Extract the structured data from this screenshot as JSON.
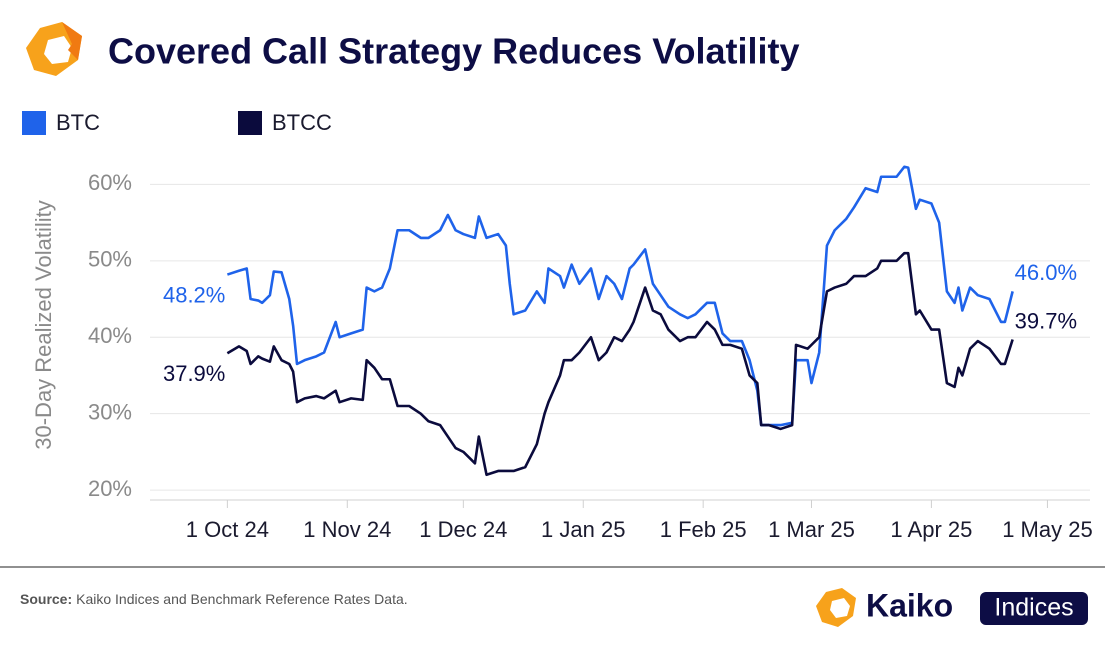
{
  "chart_data": {
    "type": "line",
    "title": "Covered Call Strategy Reduces Volatility",
    "y_label": "30-Day Realized Volatility",
    "x": [
      "2024-10-01",
      "2024-10-04",
      "2024-10-06",
      "2024-10-07",
      "2024-10-09",
      "2024-10-10",
      "2024-10-12",
      "2024-10-13",
      "2024-10-15",
      "2024-10-17",
      "2024-10-18",
      "2024-10-19",
      "2024-10-21",
      "2024-10-24",
      "2024-10-26",
      "2024-10-29",
      "2024-10-30",
      "2024-11-02",
      "2024-11-05",
      "2024-11-06",
      "2024-11-08",
      "2024-11-10",
      "2024-11-12",
      "2024-11-14",
      "2024-11-17",
      "2024-11-20",
      "2024-11-22",
      "2024-11-25",
      "2024-11-27",
      "2024-11-29",
      "2024-12-01",
      "2024-12-04",
      "2024-12-05",
      "2024-12-07",
      "2024-12-10",
      "2024-12-12",
      "2024-12-13",
      "2024-12-14",
      "2024-12-17",
      "2024-12-20",
      "2024-12-22",
      "2024-12-23",
      "2024-12-26",
      "2024-12-27",
      "2024-12-29",
      "2024-12-31",
      "2025-01-03",
      "2025-01-05",
      "2025-01-07",
      "2025-01-09",
      "2025-01-11",
      "2025-01-13",
      "2025-01-14",
      "2025-01-17",
      "2025-01-19",
      "2025-01-21",
      "2025-01-23",
      "2025-01-26",
      "2025-01-28",
      "2025-01-30",
      "2025-02-02",
      "2025-02-04",
      "2025-02-06",
      "2025-02-08",
      "2025-02-11",
      "2025-02-13",
      "2025-02-15",
      "2025-02-16",
      "2025-02-18",
      "2025-02-21",
      "2025-02-24",
      "2025-02-25",
      "2025-02-28",
      "2025-03-01",
      "2025-03-03",
      "2025-03-05",
      "2025-03-07",
      "2025-03-10",
      "2025-03-12",
      "2025-03-15",
      "2025-03-18",
      "2025-03-19",
      "2025-03-23",
      "2025-03-25",
      "2025-03-26",
      "2025-03-28",
      "2025-03-29",
      "2025-04-01",
      "2025-04-03",
      "2025-04-05",
      "2025-04-07",
      "2025-04-08",
      "2025-04-09",
      "2025-04-11",
      "2025-04-13",
      "2025-04-16",
      "2025-04-19",
      "2025-04-20",
      "2025-04-22"
    ],
    "series": [
      {
        "name": "BTC",
        "color": "#1f63ea",
        "values": [
          48.2,
          48.7,
          49.0,
          45.0,
          44.8,
          44.5,
          45.5,
          48.6,
          48.5,
          45.0,
          41.5,
          36.5,
          37.0,
          37.5,
          38.0,
          42.0,
          40.0,
          40.5,
          41.0,
          46.5,
          46.0,
          46.5,
          49.0,
          54.0,
          54.0,
          53.0,
          53.0,
          54.0,
          56.0,
          54.0,
          53.5,
          53.0,
          55.8,
          53.0,
          53.5,
          52.0,
          47.0,
          43.0,
          43.5,
          46.0,
          44.5,
          49.0,
          48.0,
          46.5,
          49.5,
          47.0,
          49.0,
          45.0,
          48.0,
          47.0,
          45.0,
          49.0,
          49.5,
          51.5,
          47.0,
          45.5,
          44.0,
          43.0,
          42.5,
          43.0,
          44.5,
          44.5,
          40.5,
          39.5,
          39.5,
          37.0,
          33.0,
          28.5,
          28.5,
          28.5,
          28.8,
          37.0,
          37.0,
          34.0,
          38.0,
          52.0,
          54.0,
          55.5,
          57.0,
          59.5,
          59.0,
          61.0,
          61.0,
          62.3,
          62.2,
          56.8,
          58.0,
          57.5,
          55.0,
          46.0,
          44.5,
          46.5,
          43.5,
          46.5,
          45.5,
          45.0,
          42.0,
          42.0,
          46.0
        ],
        "value_labels": [
          "48.2%",
          null,
          null,
          null,
          null,
          null,
          null,
          null,
          null,
          null,
          null,
          null,
          null,
          null,
          null,
          null,
          null,
          null,
          null,
          null,
          null,
          null,
          null,
          null,
          null,
          null,
          null,
          null,
          null,
          null,
          null,
          null,
          null,
          null,
          null,
          null,
          null,
          null,
          null,
          null,
          null,
          null,
          null,
          null,
          null,
          null,
          null,
          null,
          null,
          null,
          null,
          null,
          null,
          null,
          null,
          null,
          null,
          null,
          null,
          null,
          null,
          null,
          null,
          null,
          null,
          null,
          null,
          null,
          null,
          null,
          null,
          null,
          null,
          null,
          null,
          null,
          null,
          null,
          null,
          null,
          null,
          null,
          null,
          null,
          null,
          null,
          null,
          null,
          null,
          null,
          null,
          null,
          null,
          null,
          null,
          null,
          null,
          null,
          "46.0%"
        ]
      },
      {
        "name": "BTCC",
        "color": "#0b0b3d",
        "values": [
          37.9,
          38.8,
          38.2,
          36.5,
          37.5,
          37.2,
          36.8,
          38.8,
          37.0,
          36.5,
          35.5,
          31.5,
          32.0,
          32.3,
          32.0,
          33.0,
          31.5,
          32.0,
          31.8,
          37.0,
          36.0,
          34.5,
          34.5,
          31.0,
          31.0,
          30.0,
          29.0,
          28.5,
          27.0,
          25.5,
          25.0,
          23.5,
          27.0,
          22.0,
          22.5,
          22.5,
          22.5,
          22.5,
          23.0,
          26.0,
          30.0,
          31.5,
          35.0,
          37.0,
          37.0,
          38.0,
          40.0,
          37.0,
          38.0,
          40.0,
          39.5,
          41.0,
          42.0,
          46.5,
          43.5,
          43.0,
          41.0,
          39.5,
          40.0,
          40.0,
          42.0,
          41.0,
          39.0,
          39.0,
          38.5,
          35.0,
          34.0,
          28.5,
          28.5,
          28.0,
          28.5,
          39.0,
          38.5,
          39.0,
          40.0,
          46.0,
          46.5,
          47.0,
          48.0,
          48.0,
          49.0,
          50.0,
          50.0,
          51.0,
          51.0,
          43.0,
          43.5,
          41.0,
          41.0,
          34.0,
          33.5,
          36.0,
          35.0,
          38.5,
          39.5,
          38.5,
          36.5,
          36.5,
          39.7
        ],
        "value_labels": [
          "37.9%",
          null,
          null,
          null,
          null,
          null,
          null,
          null,
          null,
          null,
          null,
          null,
          null,
          null,
          null,
          null,
          null,
          null,
          null,
          null,
          null,
          null,
          null,
          null,
          null,
          null,
          null,
          null,
          null,
          null,
          null,
          null,
          null,
          null,
          null,
          null,
          null,
          null,
          null,
          null,
          null,
          null,
          null,
          null,
          null,
          null,
          null,
          null,
          null,
          null,
          null,
          null,
          null,
          null,
          null,
          null,
          null,
          null,
          null,
          null,
          null,
          null,
          null,
          null,
          null,
          null,
          null,
          null,
          null,
          null,
          null,
          null,
          null,
          null,
          null,
          null,
          null,
          null,
          null,
          null,
          null,
          null,
          null,
          null,
          null,
          null,
          null,
          null,
          null,
          null,
          null,
          null,
          null,
          null,
          null,
          null,
          null,
          null,
          "39.7%"
        ]
      }
    ],
    "xlim": [
      "2024-09-11",
      "2025-05-12"
    ],
    "xticks": [
      {
        "value": "2024-10-01",
        "label": "1 Oct 24"
      },
      {
        "value": "2024-11-01",
        "label": "1 Nov 24"
      },
      {
        "value": "2024-12-01",
        "label": "1 Dec 24"
      },
      {
        "value": "2025-01-01",
        "label": "1 Jan 25"
      },
      {
        "value": "2025-02-01",
        "label": "1 Feb 25"
      },
      {
        "value": "2025-03-01",
        "label": "1 Mar 25"
      },
      {
        "value": "2025-04-01",
        "label": "1 Apr 25"
      },
      {
        "value": "2025-05-01",
        "label": "1 May 25"
      }
    ],
    "ylim": [
      18.7,
      62.8
    ],
    "yticks": [
      {
        "value": 20,
        "label": "20%"
      },
      {
        "value": 30,
        "label": "30%"
      },
      {
        "value": 40,
        "label": "40%"
      },
      {
        "value": 50,
        "label": "50%"
      },
      {
        "value": 60,
        "label": "60%"
      }
    ],
    "grid": true,
    "legend": "top-left"
  },
  "source": {
    "label": "Source:",
    "text": "Kaiko Indices and Benchmark Reference Rates Data."
  },
  "logo": {
    "name": "Kaiko",
    "badge": "Indices"
  }
}
